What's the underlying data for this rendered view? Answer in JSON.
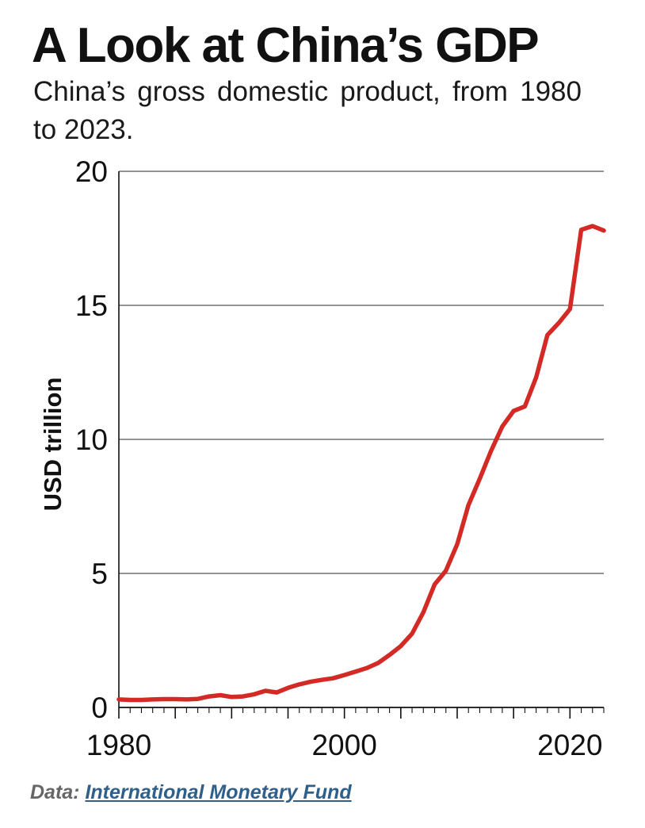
{
  "header": {
    "title": "A Look at China’s GDP",
    "subtitle": "China’s gross domestic product, from 1980 to 2023."
  },
  "footer": {
    "source_prefix": "Data: ",
    "source_link": "International Monetary Fund"
  },
  "colors": {
    "line": "#d42a26",
    "grid": "#555555",
    "axis": "#111111",
    "link": "#2f5f8a"
  },
  "chart_data": {
    "type": "line",
    "title": "A Look at China’s GDP",
    "ylabel": "USD trillion",
    "xlim": [
      1980,
      2023
    ],
    "ylim": [
      0,
      20
    ],
    "x_ticks": [
      1980,
      2000,
      2020
    ],
    "y_ticks": [
      0,
      5,
      10,
      15,
      20
    ],
    "grid": "horizontal",
    "series": [
      {
        "x": [
          1980,
          1981,
          1982,
          1983,
          1984,
          1985,
          1986,
          1987,
          1988,
          1989,
          1990,
          1991,
          1992,
          1993,
          1994,
          1995,
          1996,
          1997,
          1998,
          1999,
          2000,
          2001,
          2002,
          2003,
          2004,
          2005,
          2006,
          2007,
          2008,
          2009,
          2010,
          2011,
          2012,
          2013,
          2014,
          2015,
          2016,
          2017,
          2018,
          2019,
          2020,
          2021,
          2022,
          2023
        ],
        "values": [
          0.3,
          0.28,
          0.28,
          0.3,
          0.31,
          0.31,
          0.3,
          0.32,
          0.41,
          0.46,
          0.39,
          0.41,
          0.49,
          0.62,
          0.56,
          0.73,
          0.86,
          0.96,
          1.03,
          1.09,
          1.21,
          1.34,
          1.47,
          1.66,
          1.96,
          2.29,
          2.75,
          3.55,
          4.59,
          5.1,
          6.09,
          7.55,
          8.53,
          9.57,
          10.48,
          11.06,
          11.23,
          12.31,
          13.89,
          14.34,
          14.86,
          17.82,
          17.96,
          17.79
        ]
      }
    ]
  }
}
